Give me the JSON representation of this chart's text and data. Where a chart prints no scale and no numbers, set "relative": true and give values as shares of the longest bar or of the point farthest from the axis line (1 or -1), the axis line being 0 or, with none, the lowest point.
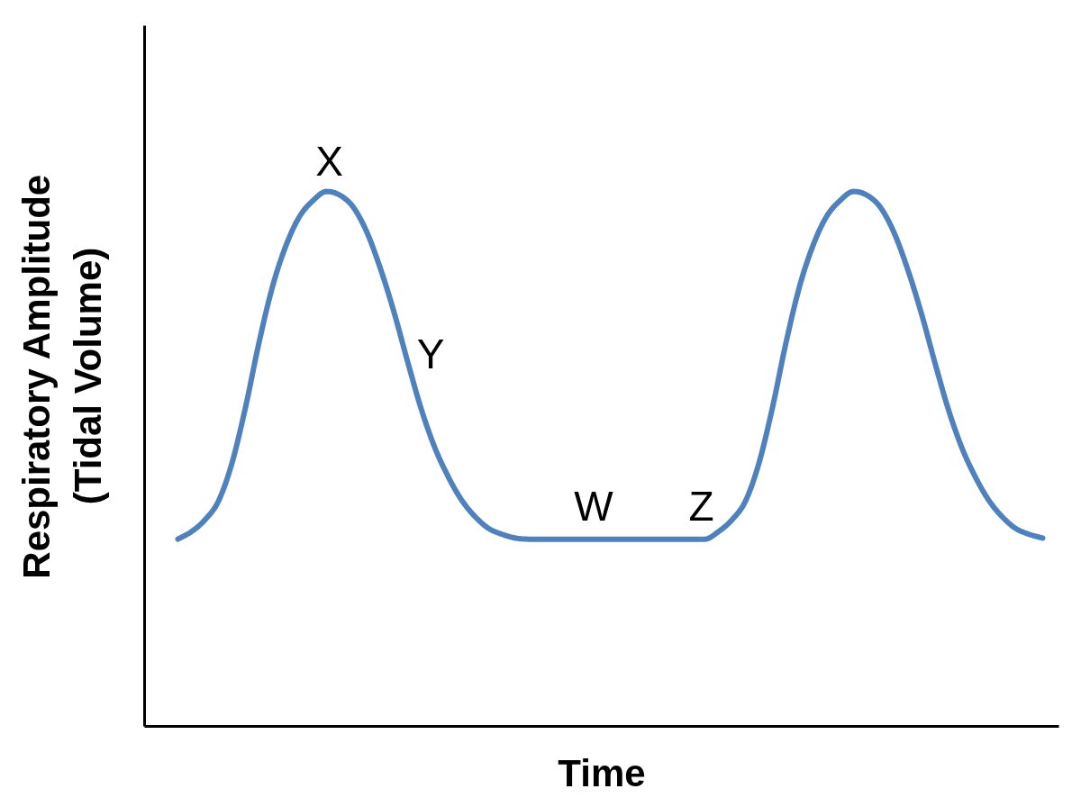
{
  "chart_data": {
    "type": "line",
    "xlabel": "Time",
    "ylabel": "Respiratory Amplitude\n(Tidal Volume)",
    "relative": true,
    "line_style": "solid",
    "categories": [
      null,
      null,
      null,
      null,
      null,
      null,
      null,
      null,
      null,
      null,
      null,
      null,
      null,
      null,
      null,
      null,
      null,
      null,
      null,
      null,
      null,
      null,
      null,
      null,
      null,
      null,
      null,
      null,
      null,
      null,
      null,
      null,
      null,
      null,
      null,
      null,
      null,
      null,
      null,
      null,
      null,
      null,
      null,
      null,
      null,
      null,
      null,
      null,
      null,
      null,
      null,
      null,
      null,
      null,
      null,
      null,
      null,
      null,
      null,
      null,
      null,
      null,
      null,
      null,
      null
    ],
    "series": [
      {
        "color": "#4f81bd",
        "values": [
          0.35,
          0.364,
          0.386,
          0.421,
          0.492,
          0.596,
          0.717,
          0.822,
          0.899,
          0.953,
          0.983,
          1,
          0.993,
          0.97,
          0.923,
          0.855,
          0.774,
          0.682,
          0.594,
          0.522,
          0.467,
          0.423,
          0.392,
          0.37,
          0.359,
          0.352,
          0.35,
          0.35,
          0.35,
          0.35,
          0.35,
          0.35,
          0.35,
          0.35,
          0.35,
          0.35,
          0.35,
          0.35,
          0.35,
          0.35,
          0.364,
          0.386,
          0.421,
          0.492,
          0.596,
          0.717,
          0.822,
          0.899,
          0.953,
          0.983,
          1,
          0.993,
          0.97,
          0.923,
          0.855,
          0.774,
          0.682,
          0.594,
          0.522,
          0.467,
          0.423,
          0.392,
          0.37,
          0.359,
          0.352
        ]
      }
    ],
    "annotations": [
      "X",
      "Y",
      "W",
      "Z"
    ]
  }
}
